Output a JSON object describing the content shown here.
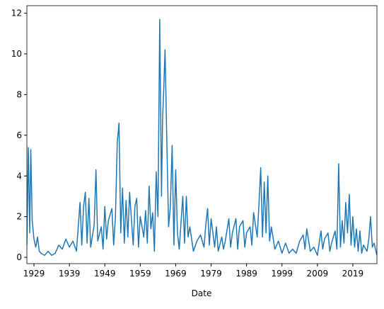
{
  "chart_data": {
    "type": "line",
    "xlabel": "Date",
    "x": [
      1927,
      1927.4,
      1927.8,
      1928.1,
      1928.5,
      1929,
      1929.5,
      1930,
      1930.5,
      1931,
      1932,
      1933,
      1934,
      1935,
      1936,
      1937,
      1938,
      1939,
      1940,
      1941,
      1942,
      1942.5,
      1943,
      1943.5,
      1944,
      1944.5,
      1945,
      1946,
      1946.5,
      1947,
      1948,
      1948.5,
      1949,
      1949.5,
      1950,
      1951,
      1951.5,
      1952,
      1952.5,
      1953,
      1953.5,
      1954,
      1954.5,
      1955,
      1955.5,
      1956,
      1957,
      1957.5,
      1958,
      1958.5,
      1959,
      1960,
      1960.5,
      1961,
      1961.5,
      1962,
      1962.5,
      1963,
      1963.5,
      1964,
      1964.5,
      1965,
      1965.3,
      1965.6,
      1966,
      1966.5,
      1967,
      1967.5,
      1968,
      1968.5,
      1969,
      1969.5,
      1970,
      1971,
      1971.5,
      1972,
      1972.5,
      1973,
      1974,
      1975,
      1976,
      1977,
      1977.5,
      1978,
      1978.5,
      1979,
      1980,
      1980.5,
      1981,
      1982,
      1982.5,
      1983,
      1984,
      1984.5,
      1985,
      1986,
      1986.5,
      1987,
      1988,
      1988.5,
      1989,
      1990,
      1990.5,
      1991,
      1992,
      1992.5,
      1993,
      1993.5,
      1994,
      1994.5,
      1995,
      1995.5,
      1996,
      1997,
      1998,
      1999,
      2000,
      2001,
      2002,
      2003,
      2004,
      2005,
      2005.5,
      2006,
      2007,
      2008,
      2009,
      2010,
      2010.5,
      2011,
      2012,
      2012.5,
      2013,
      2014,
      2014.5,
      2015,
      2015.5,
      2016,
      2016.5,
      2017,
      2017.5,
      2018,
      2018.5,
      2019,
      2019.5,
      2020,
      2020.5,
      2021,
      2021.5,
      2022,
      2023,
      2023.5,
      2024,
      2024.5,
      2025,
      2025.8
    ],
    "series": [
      {
        "color": "#1f77b4",
        "values": [
          0.6,
          5.4,
          1.2,
          5.3,
          1.8,
          0.9,
          0.5,
          1.0,
          0.3,
          0.2,
          0.1,
          0.3,
          0.1,
          0.2,
          0.6,
          0.4,
          0.9,
          0.5,
          0.8,
          0.3,
          2.7,
          0.6,
          2.5,
          3.2,
          0.7,
          2.9,
          0.5,
          1.6,
          4.3,
          0.8,
          1.5,
          0.4,
          2.5,
          0.9,
          1.8,
          2.4,
          0.6,
          2.0,
          5.6,
          6.6,
          1.2,
          3.4,
          0.7,
          2.8,
          1.0,
          3.2,
          0.6,
          2.5,
          2.9,
          0.5,
          2.0,
          1.0,
          2.3,
          0.7,
          3.5,
          1.4,
          2.2,
          0.3,
          4.2,
          2.0,
          11.7,
          3.0,
          6.8,
          8.1,
          10.2,
          5.7,
          1.5,
          2.5,
          5.5,
          0.6,
          4.3,
          1.2,
          0.4,
          3.0,
          0.7,
          3.0,
          1.0,
          1.5,
          0.3,
          0.8,
          1.1,
          0.5,
          1.6,
          2.4,
          0.6,
          1.9,
          0.5,
          1.5,
          0.3,
          1.0,
          0.4,
          0.8,
          1.9,
          0.5,
          1.2,
          1.9,
          0.4,
          1.5,
          1.8,
          0.5,
          1.2,
          1.5,
          0.6,
          2.2,
          1.0,
          2.6,
          4.4,
          1.0,
          3.7,
          1.2,
          4.0,
          0.8,
          1.5,
          0.4,
          0.8,
          0.2,
          0.7,
          0.2,
          0.4,
          0.2,
          0.8,
          1.1,
          0.4,
          1.4,
          0.3,
          0.5,
          0.1,
          1.3,
          0.4,
          0.9,
          1.2,
          0.3,
          0.7,
          1.3,
          0.4,
          4.6,
          0.5,
          1.8,
          0.7,
          2.7,
          1.2,
          3.1,
          0.6,
          2.0,
          0.5,
          1.4,
          0.3,
          1.3,
          0.2,
          0.6,
          0.3,
          0.9,
          2.0,
          0.5,
          0.7,
          0.1
        ]
      }
    ],
    "xlim": [
      1927.0,
      2025.8
    ],
    "xticks": [
      1929,
      1939,
      1949,
      1959,
      1969,
      1979,
      1989,
      1999,
      2009,
      2019
    ],
    "ylim": [
      -0.31,
      12.37
    ],
    "yticks": [
      0,
      2,
      4,
      6,
      8,
      10,
      12
    ]
  }
}
